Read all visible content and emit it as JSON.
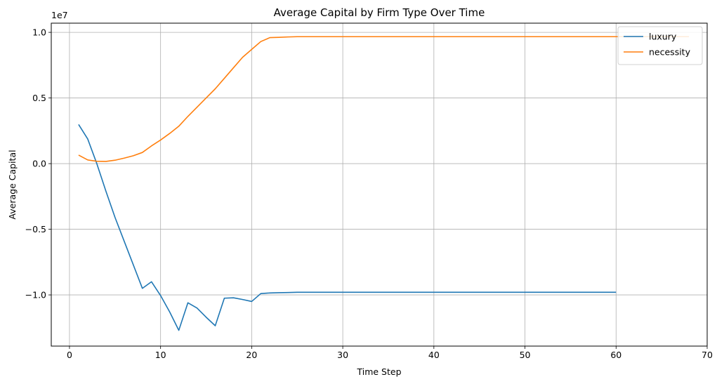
{
  "chart_data": {
    "type": "line",
    "title": "Average Capital by Firm Type Over Time",
    "xlabel": "Time Step",
    "ylabel": "Average Capital",
    "y_multiplier_label": "1e7",
    "xlim": [
      -2,
      70
    ],
    "ylim": [
      -1.39,
      1.07
    ],
    "x_ticks": [
      0,
      10,
      20,
      30,
      40,
      50,
      60,
      70
    ],
    "y_ticks": [
      -1.0,
      -0.5,
      0.0,
      0.5,
      1.0
    ],
    "y_tick_labels": [
      "−1.0",
      "−0.5",
      "0.0",
      "0.5",
      "1.0"
    ],
    "grid": true,
    "legend_position": "top-right",
    "series": [
      {
        "name": "luxury",
        "color": "#1f77b4",
        "x": [
          1,
          2,
          3,
          4,
          5,
          6,
          7,
          8,
          9,
          10,
          11,
          12,
          13,
          14,
          15,
          16,
          17,
          18,
          19,
          20,
          21,
          22,
          23,
          24,
          25,
          30,
          35,
          40,
          45,
          50,
          55,
          60
        ],
        "y": [
          0.298,
          0.188,
          0.0,
          -0.21,
          -0.41,
          -0.59,
          -0.77,
          -0.95,
          -0.9,
          -1.005,
          -1.13,
          -1.27,
          -1.06,
          -1.1,
          -1.17,
          -1.235,
          -1.025,
          -1.022,
          -1.035,
          -1.05,
          -0.99,
          -0.985,
          -0.983,
          -0.982,
          -0.98,
          -0.98,
          -0.98,
          -0.98,
          -0.98,
          -0.98,
          -0.98,
          -0.98
        ]
      },
      {
        "name": "necessity",
        "color": "#ff7f0e",
        "x": [
          1,
          2,
          3,
          4,
          5,
          6,
          7,
          8,
          9,
          10,
          11,
          12,
          13,
          14,
          15,
          16,
          17,
          18,
          19,
          20,
          21,
          22,
          23,
          24,
          25,
          30,
          35,
          40,
          45,
          50,
          55,
          60,
          65,
          68
        ],
        "y": [
          0.065,
          0.028,
          0.018,
          0.017,
          0.026,
          0.042,
          0.06,
          0.085,
          0.135,
          0.18,
          0.23,
          0.285,
          0.36,
          0.43,
          0.5,
          0.57,
          0.65,
          0.73,
          0.81,
          0.87,
          0.93,
          0.96,
          0.962,
          0.965,
          0.967,
          0.967,
          0.967,
          0.967,
          0.967,
          0.967,
          0.967,
          0.967,
          0.967,
          0.967
        ]
      }
    ]
  }
}
